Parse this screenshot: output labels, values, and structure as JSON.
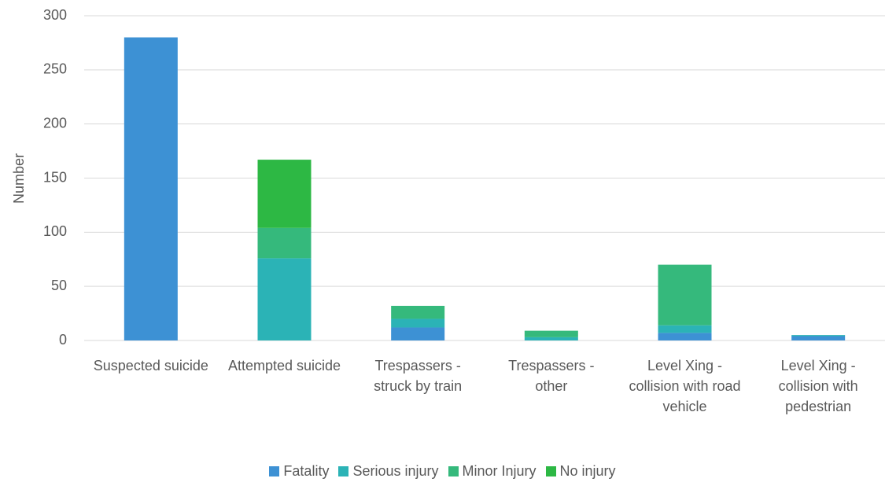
{
  "chart_data": {
    "type": "stacked_bar",
    "y_label": "Number",
    "categories": [
      "Suspected suicide",
      "Attempted suicide",
      "Trespassers - struck by train",
      "Trespassers - other",
      "Level Xing - collision with road vehicle",
      "Level Xing - collision with pedestrian"
    ],
    "series": [
      {
        "name": "Fatality",
        "color": "#3d91d4",
        "values": [
          280,
          0,
          12,
          0,
          7,
          4
        ]
      },
      {
        "name": "Serious injury",
        "color": "#2bb3b6",
        "values": [
          0,
          76,
          8,
          3,
          7,
          1
        ]
      },
      {
        "name": "Minor Injury",
        "color": "#35b97c",
        "values": [
          0,
          28,
          12,
          6,
          56,
          0
        ]
      },
      {
        "name": "No injury",
        "color": "#2db844",
        "values": [
          0,
          63,
          0,
          0,
          0,
          0
        ]
      }
    ],
    "ylim": [
      0,
      300
    ],
    "yticks": [
      0,
      50,
      100,
      150,
      200,
      250,
      300
    ],
    "grid": true,
    "legend": "bottom"
  }
}
